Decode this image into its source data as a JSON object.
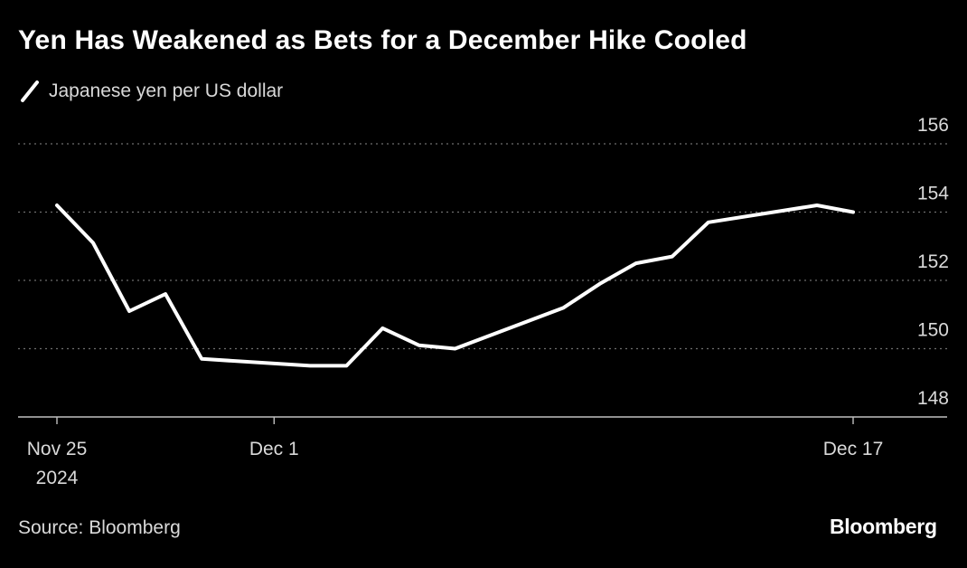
{
  "title": "Yen Has Weakened as Bets for a December Hike Cooled",
  "source": "Source: Bloomberg",
  "brand": "Bloomberg",
  "colors": {
    "background": "#000000",
    "line": "#ffffff",
    "grid": "#6e6e6e",
    "axis": "#bfbfbf",
    "muted_text": "#d9d9d9"
  },
  "chart_data": {
    "type": "line",
    "title": "Yen Has Weakened as Bets for a December Hike Cooled",
    "xlabel": "",
    "ylabel": "",
    "ylim": [
      148,
      156
    ],
    "yticks": [
      148,
      150,
      152,
      154,
      156
    ],
    "y_axis_side": "right",
    "grid": "horizontal dotted",
    "x_ticks": [
      {
        "date": "2024-11-25",
        "label": [
          "Nov 25",
          "2024"
        ]
      },
      {
        "date": "2024-12-01",
        "label": [
          "Dec 1"
        ]
      },
      {
        "date": "2024-12-17",
        "label": [
          "Dec 17"
        ]
      }
    ],
    "series": [
      {
        "name": "Japanese yen per US dollar",
        "color": "#ffffff",
        "points": [
          {
            "x": "2024-11-25",
            "y": 154.2
          },
          {
            "x": "2024-11-26",
            "y": 153.1
          },
          {
            "x": "2024-11-27",
            "y": 151.1
          },
          {
            "x": "2024-11-28",
            "y": 151.6
          },
          {
            "x": "2024-11-29",
            "y": 149.7
          },
          {
            "x": "2024-12-02",
            "y": 149.5
          },
          {
            "x": "2024-12-03",
            "y": 149.5
          },
          {
            "x": "2024-12-04",
            "y": 150.6
          },
          {
            "x": "2024-12-05",
            "y": 150.1
          },
          {
            "x": "2024-12-06",
            "y": 150.0
          },
          {
            "x": "2024-12-09",
            "y": 151.2
          },
          {
            "x": "2024-12-10",
            "y": 151.9
          },
          {
            "x": "2024-12-11",
            "y": 152.5
          },
          {
            "x": "2024-12-12",
            "y": 152.7
          },
          {
            "x": "2024-12-13",
            "y": 153.7
          },
          {
            "x": "2024-12-16",
            "y": 154.2
          },
          {
            "x": "2024-12-17",
            "y": 154.0
          }
        ]
      }
    ]
  }
}
